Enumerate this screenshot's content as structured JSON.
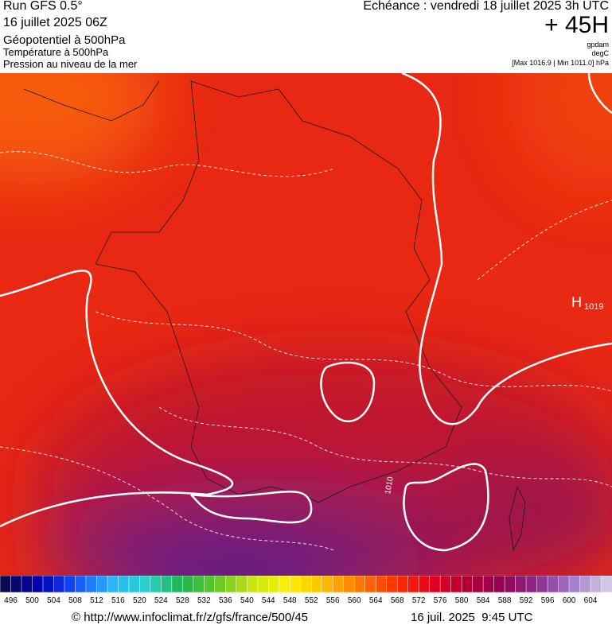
{
  "header": {
    "run": "Run GFS 0.5°",
    "run_date": "16 juillet 2025 06Z",
    "field_1": "Géopotentiel à 500hPa",
    "field_2": "Température à 500hPa",
    "field_3": "Pression au niveau de la mer",
    "valid_time": "Echéance : vendredi 18 juillet 2025 3h UTC",
    "lead": "+ 45H",
    "unit_1": "gpdam",
    "unit_2": "degC",
    "pressure_range": "[Max 1016.9 | Min 1011.0] hPa"
  },
  "map": {
    "high_label": "H",
    "high_value": "1019",
    "isobar_label": "1010"
  },
  "colorbar": {
    "labels": [
      496,
      500,
      504,
      508,
      512,
      516,
      520,
      524,
      528,
      532,
      536,
      540,
      544,
      548,
      552,
      556,
      560,
      564,
      568,
      572,
      576,
      580,
      584,
      588,
      592,
      596,
      600,
      604
    ],
    "colors": [
      "#0a0a50",
      "#0000b4",
      "#1450ff",
      "#28b4ff",
      "#28d2c8",
      "#1eb450",
      "#64c828",
      "#c8e614",
      "#fff000",
      "#ffbe00",
      "#ff7800",
      "#ff3200",
      "#e6001e",
      "#b40032",
      "#960050",
      "#8c288c",
      "#a078c8",
      "#d2c8e6"
    ]
  },
  "footer": {
    "source": "© http://www.infoclimat.fr/z/gfs/france/500/45",
    "timestamp": "16 juil. 2025  9:45 UTC"
  }
}
